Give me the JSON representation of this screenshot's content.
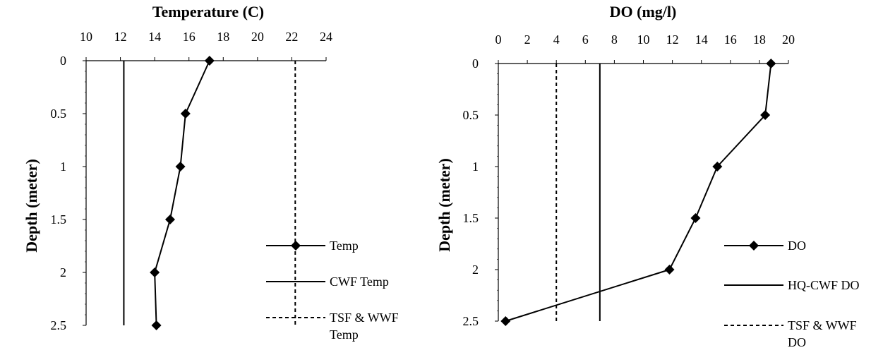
{
  "chart_data": [
    {
      "type": "line",
      "title": "Temperature (C)",
      "xlabel": "Temperature (C)",
      "ylabel": "Depth (meter)",
      "xlim": [
        10,
        24
      ],
      "ylim": [
        0,
        2.5
      ],
      "x_ticks": [
        "10",
        "12",
        "14",
        "16",
        "18",
        "20",
        "22",
        "24"
      ],
      "y_ticks": [
        "0",
        "0.5",
        "1",
        "1.5",
        "2",
        "2.5"
      ],
      "x_axis_position": "top",
      "y_axis_reversed": true,
      "grid": false,
      "legend_position": "right",
      "series": [
        {
          "name": "Temp",
          "style": "solid-diamond-markers",
          "points": [
            [
              17.2,
              0
            ],
            [
              15.8,
              0.5
            ],
            [
              15.5,
              1
            ],
            [
              14.9,
              1.5
            ],
            [
              14.0,
              2
            ],
            [
              14.1,
              2.5
            ]
          ]
        },
        {
          "name": "CWF Temp",
          "style": "solid",
          "points": [
            [
              12.2,
              0
            ],
            [
              12.2,
              2.5
            ]
          ]
        },
        {
          "name": "TSF & WWF Temp",
          "style": "dotted",
          "points": [
            [
              22.2,
              0
            ],
            [
              22.2,
              2.5
            ]
          ]
        }
      ]
    },
    {
      "type": "line",
      "title": "DO (mg/l)",
      "xlabel": "DO (mg/l)",
      "ylabel": "Depth (meter)",
      "xlim": [
        0,
        20
      ],
      "ylim": [
        0,
        2.5
      ],
      "x_ticks": [
        "0",
        "2",
        "4",
        "6",
        "8",
        "10",
        "12",
        "14",
        "16",
        "18",
        "20"
      ],
      "y_ticks": [
        "0",
        "0.5",
        "1",
        "1.5",
        "2",
        "2.5"
      ],
      "x_axis_position": "top",
      "y_axis_reversed": true,
      "grid": false,
      "legend_position": "right",
      "series": [
        {
          "name": "DO",
          "style": "solid-diamond-markers",
          "points": [
            [
              18.8,
              0
            ],
            [
              18.4,
              0.5
            ],
            [
              15.1,
              1
            ],
            [
              13.6,
              1.5
            ],
            [
              11.8,
              2
            ],
            [
              0.5,
              2.5
            ]
          ]
        },
        {
          "name": "HQ-CWF DO",
          "style": "solid",
          "points": [
            [
              7,
              0
            ],
            [
              7,
              2.5
            ]
          ]
        },
        {
          "name": "TSF & WWF DO",
          "style": "dotted",
          "points": [
            [
              4,
              0
            ],
            [
              4,
              2.5
            ]
          ]
        }
      ]
    }
  ]
}
